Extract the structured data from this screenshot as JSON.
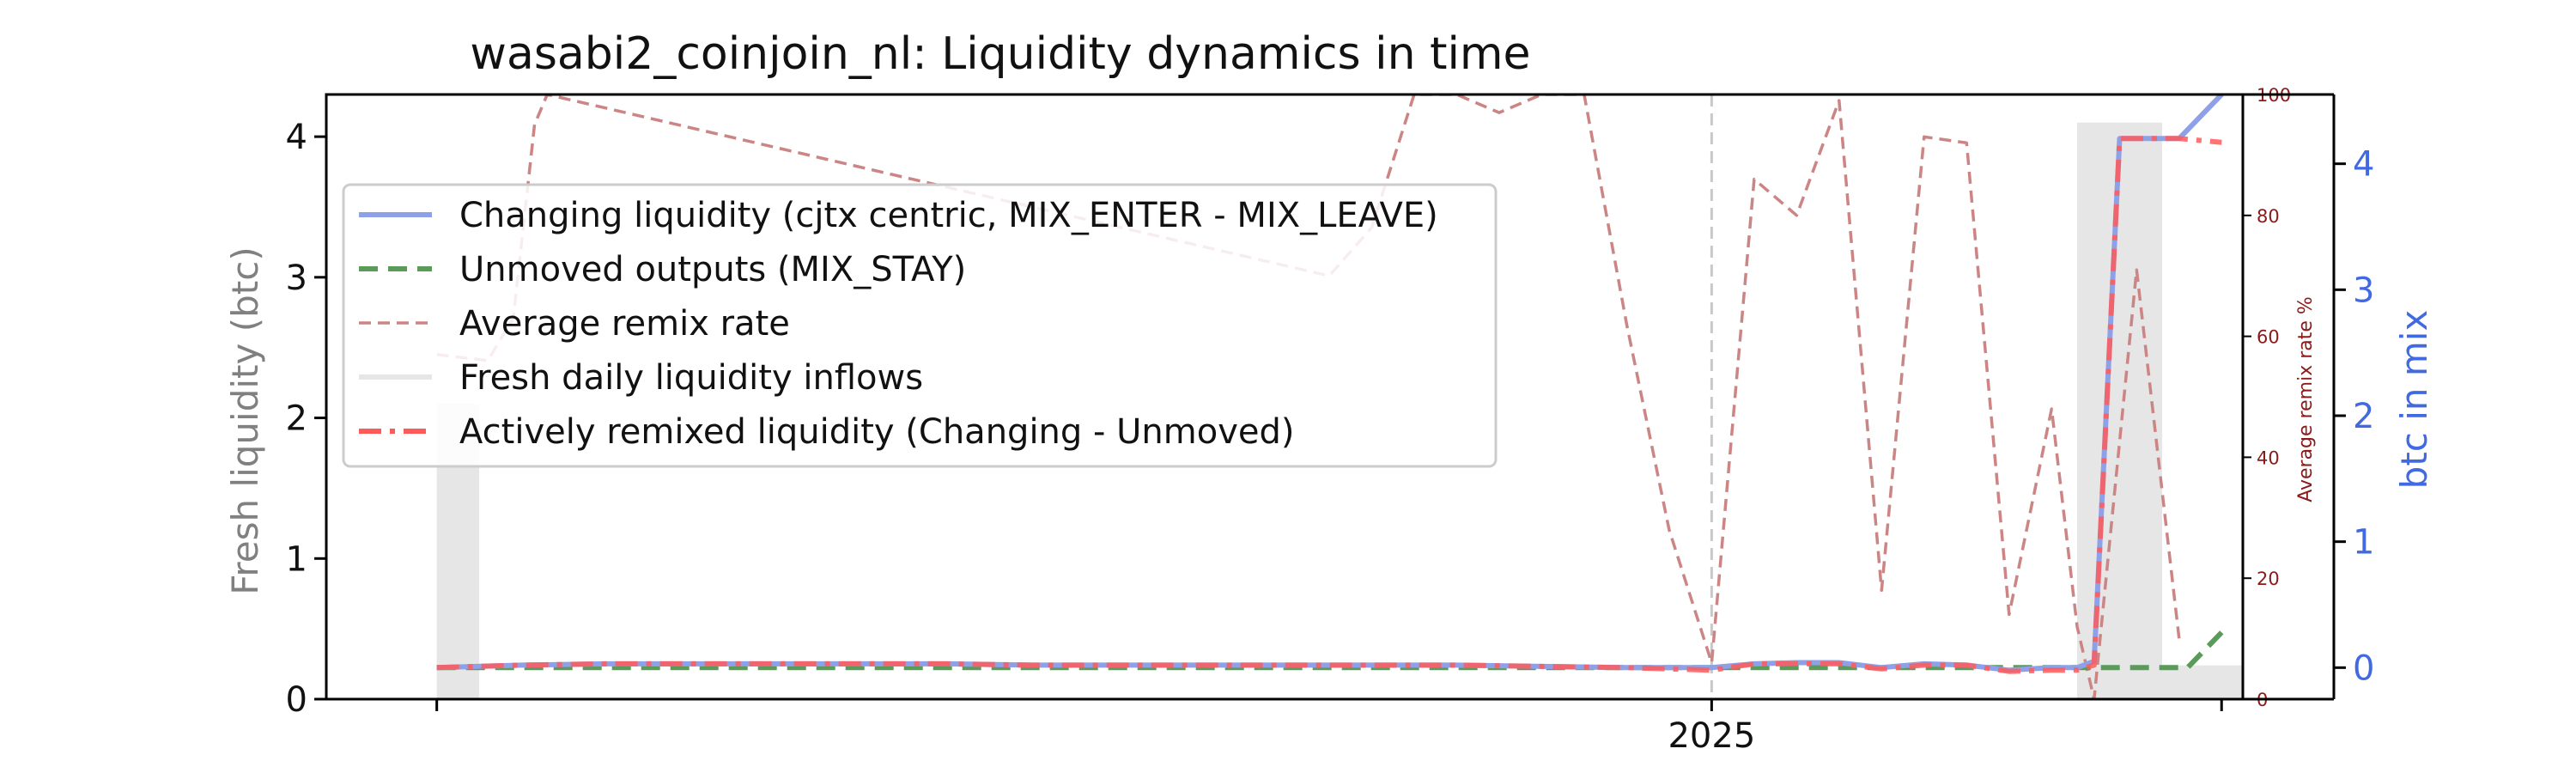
{
  "chart_data": {
    "type": "line",
    "title": "wasabi2_coinjoin_nl: Liquidity dynamics in time",
    "x_tick_labels": [
      "2025"
    ],
    "x_ticks": [
      0,
      30,
      42
    ],
    "y_left": {
      "label": "Fresh liquidity (btc)",
      "range": [
        0,
        4.3
      ],
      "ticks": [
        0,
        1,
        2,
        3,
        4
      ]
    },
    "y_right_outer": {
      "label": "btc in mix",
      "range": [
        -0.25,
        4.55
      ],
      "ticks": [
        0,
        1,
        2,
        3,
        4
      ]
    },
    "y_right_inner": {
      "label": "Average remix rate %",
      "range": [
        0,
        100
      ],
      "ticks": [
        0,
        20,
        40,
        60,
        80,
        100
      ]
    },
    "x_range": [
      -2.6,
      42.5
    ],
    "legend": {
      "position": "upper-left",
      "entries": [
        "Changing liquidity (cjtx centric, MIX_ENTER - MIX_LEAVE)",
        "Unmoved outputs (MIX_STAY)",
        "Average remix rate",
        "Fresh daily liquidity inflows",
        "Actively remixed liquidity (Changing - Unmoved)"
      ]
    },
    "colors": {
      "changing": "#8ea1e8",
      "unmoved": "#5a9b5a",
      "remix": "#cc8585",
      "inflows": "#e6e6e6",
      "active": "#ff5a5a",
      "vline": "#c8c8c8"
    },
    "vline_x": 30,
    "inflow_bars": [
      {
        "x0": 0,
        "x1": 1,
        "value": 2.1
      },
      {
        "x0": 38.6,
        "x1": 40.6,
        "value": 4.1
      },
      {
        "x0": 40.6,
        "x1": 42.5,
        "value": 0.24
      }
    ],
    "series": [
      {
        "name": "Changing liquidity (cjtx centric, MIX_ENTER - MIX_LEAVE)",
        "axis": "right_outer",
        "x": [
          0,
          2,
          4,
          6,
          8,
          10,
          12,
          14,
          16,
          18,
          20,
          22,
          24,
          26,
          28,
          30,
          31,
          32,
          33,
          34,
          35,
          36,
          37,
          38,
          38.6,
          39.0,
          39.6,
          40.0,
          41.0,
          42.0
        ],
        "values": [
          0.0,
          0.02,
          0.03,
          0.03,
          0.03,
          0.03,
          0.03,
          0.02,
          0.02,
          0.02,
          0.02,
          0.02,
          0.02,
          0.01,
          0.0,
          0.0,
          0.03,
          0.04,
          0.04,
          0.0,
          0.03,
          0.02,
          -0.02,
          0.0,
          0.0,
          0.05,
          4.2,
          4.2,
          4.2,
          4.55
        ]
      },
      {
        "name": "Unmoved outputs (MIX_STAY)",
        "axis": "right_outer",
        "x": [
          0,
          2,
          4,
          6,
          8,
          10,
          12,
          14,
          16,
          18,
          20,
          22,
          24,
          26,
          28,
          30,
          32,
          34,
          36,
          38,
          40,
          41.2,
          42.0
        ],
        "values": [
          0.0,
          0.0,
          0.0,
          0.0,
          0.0,
          0.0,
          0.0,
          0.0,
          0.0,
          0.0,
          0.0,
          0.0,
          0.0,
          0.0,
          0.0,
          0.0,
          0.0,
          0.0,
          0.0,
          0.0,
          0.0,
          0.0,
          0.28
        ]
      },
      {
        "name": "Average remix rate",
        "axis": "right_inner",
        "x": [
          0,
          1.2,
          1.8,
          2.3,
          2.6,
          21.0,
          22.0,
          23.0,
          24.0,
          25.0,
          26.0,
          27.0,
          28.0,
          29.0,
          30.0,
          31.0,
          32.0,
          33.0,
          34.0,
          35.0,
          36.0,
          37.0,
          38.0,
          38.6,
          39.0,
          40.0,
          41.0
        ],
        "values": [
          57,
          56,
          63,
          95,
          100,
          70,
          78,
          100,
          100,
          97,
          100,
          100,
          62,
          28,
          6,
          86,
          80,
          99,
          18,
          93,
          92,
          14,
          48,
          12,
          0,
          71,
          10
        ]
      },
      {
        "name": "Actively remixed liquidity (Changing - Unmoved)",
        "axis": "right_outer",
        "x": [
          0,
          2,
          4,
          6,
          8,
          10,
          12,
          14,
          16,
          18,
          20,
          22,
          24,
          26,
          28,
          30,
          31,
          32,
          33,
          34,
          35,
          36,
          37,
          38,
          38.6,
          39.0,
          39.6,
          40.0,
          41.0,
          42.0
        ],
        "values": [
          0.0,
          0.02,
          0.03,
          0.03,
          0.03,
          0.03,
          0.03,
          0.02,
          0.02,
          0.02,
          0.02,
          0.02,
          0.02,
          0.01,
          0.0,
          -0.02,
          0.03,
          0.03,
          0.03,
          -0.01,
          0.02,
          0.02,
          -0.03,
          -0.02,
          -0.02,
          0.02,
          4.2,
          4.2,
          4.2,
          4.17
        ]
      }
    ]
  }
}
